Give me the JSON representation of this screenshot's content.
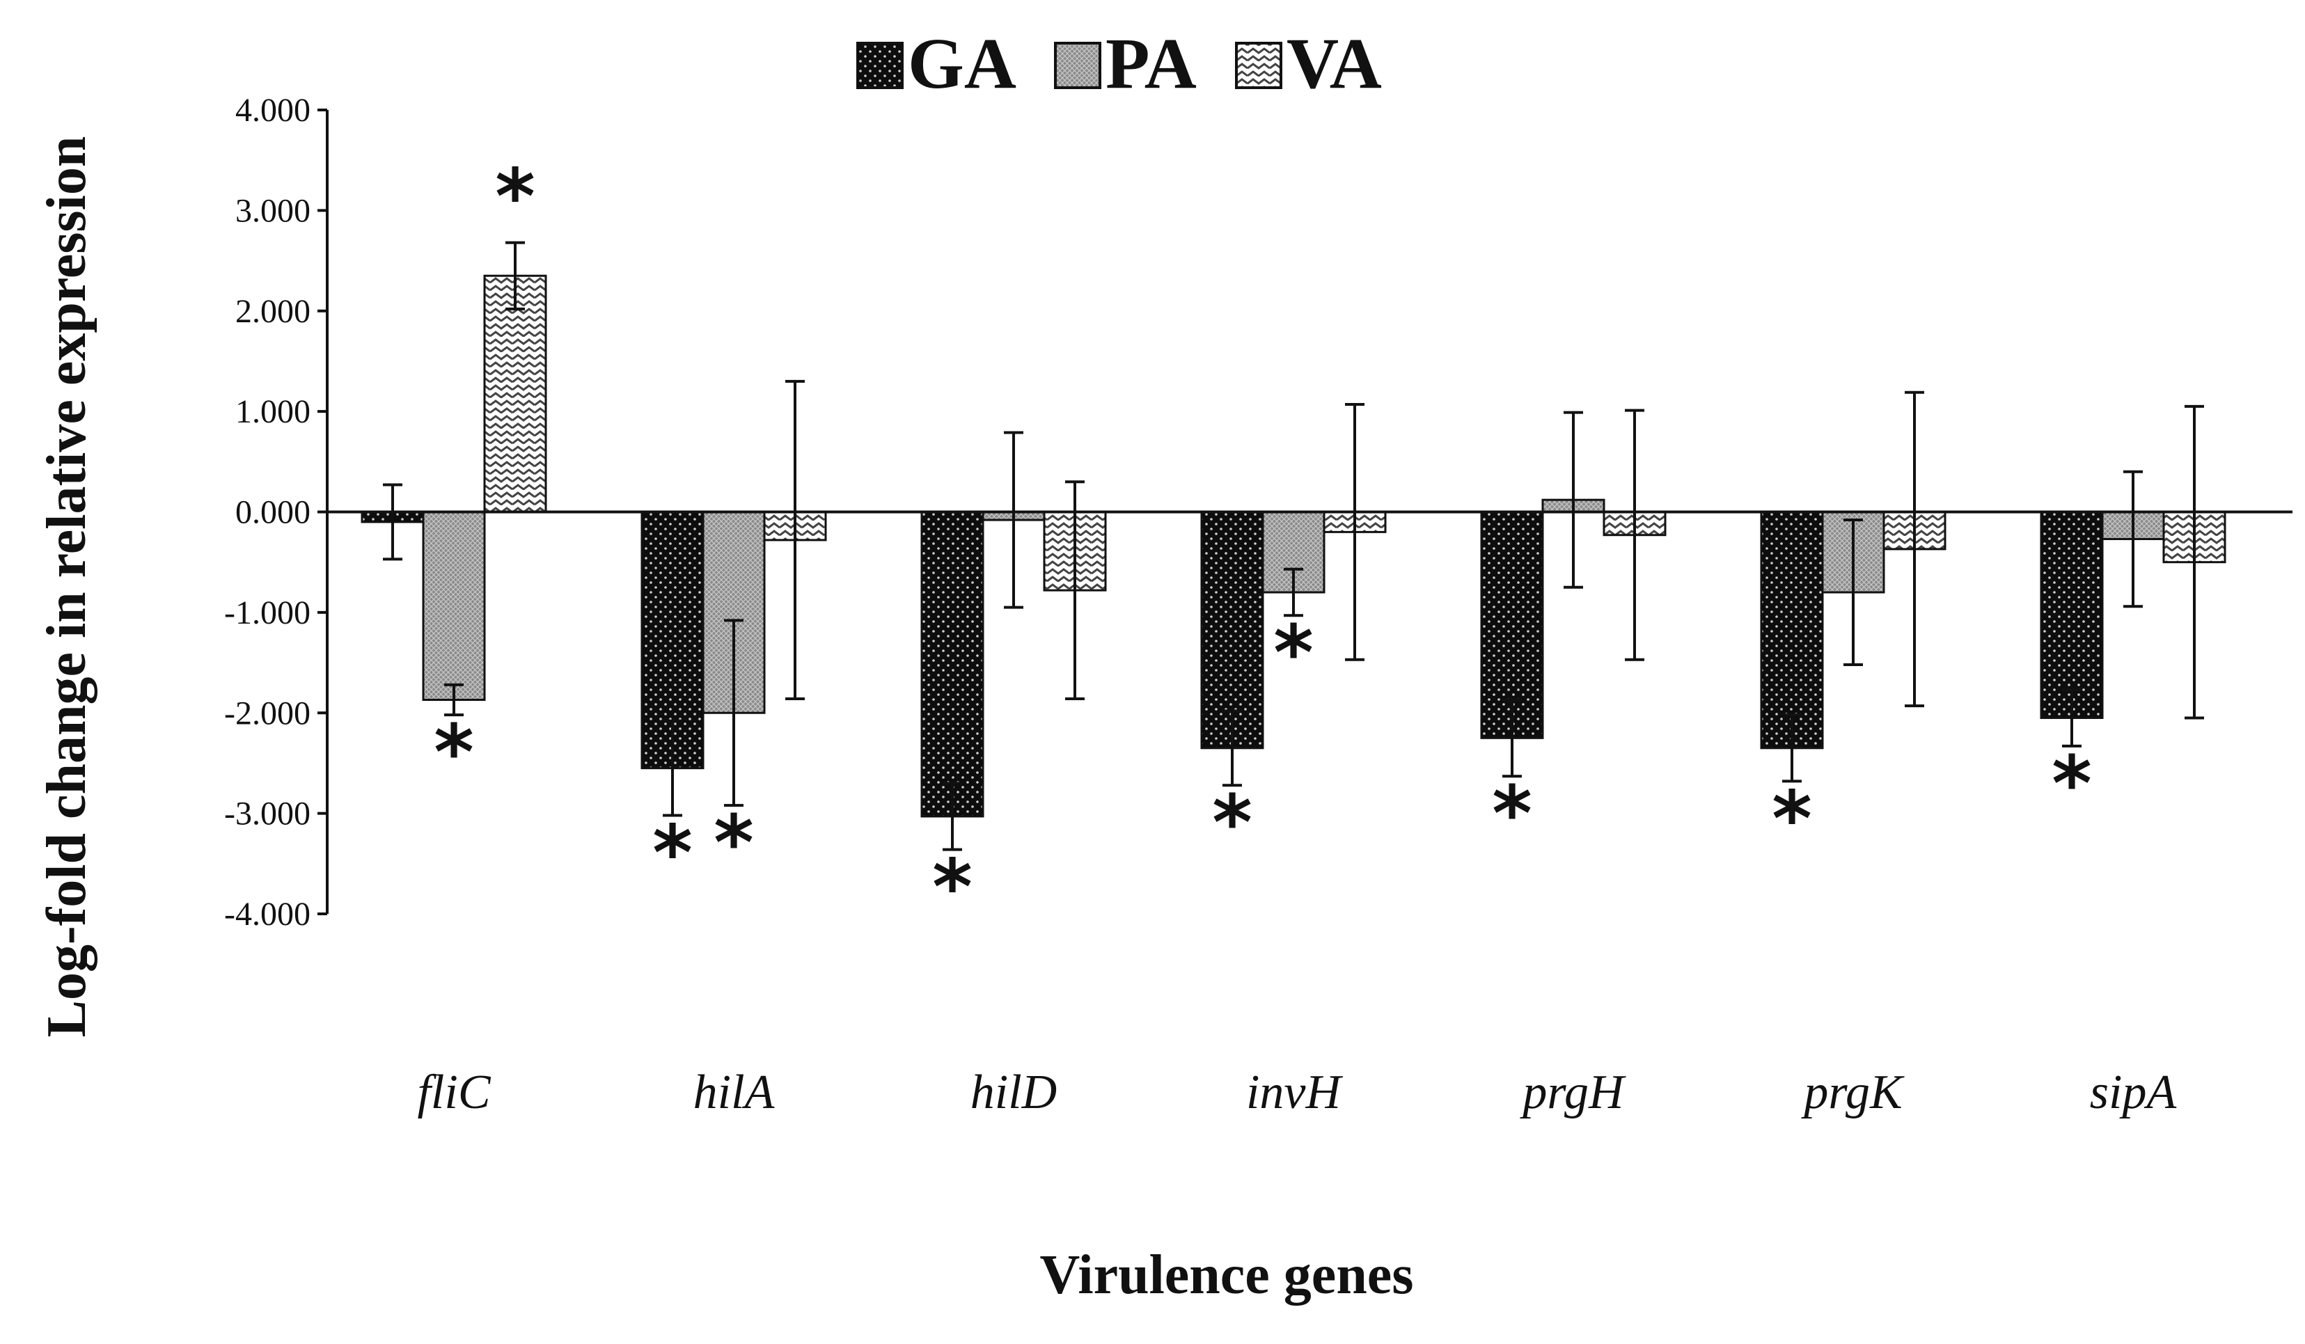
{
  "chart_data": {
    "type": "bar",
    "title": "",
    "xlabel": "Virulence genes",
    "ylabel": "Log-fold change in relative expression",
    "ylim": [
      -4,
      4
    ],
    "yticks": [
      "4.000",
      "3.000",
      "2.000",
      "1.000",
      "0.000",
      "-1.000",
      "-2.000",
      "-3.000",
      "-4.000"
    ],
    "categories": [
      "fliC",
      "hilA",
      "hilD",
      "invH",
      "prgH",
      "prgK",
      "sipA"
    ],
    "legend_position": "top-center",
    "series": [
      {
        "name": "GA",
        "pattern": "dots-on-black",
        "values": [
          -0.1,
          -2.55,
          -3.03,
          -2.35,
          -2.25,
          -2.35,
          -2.05
        ],
        "errors": [
          0.37,
          0.47,
          0.33,
          0.37,
          0.38,
          0.33,
          0.28
        ],
        "significant": [
          false,
          true,
          true,
          true,
          true,
          true,
          true
        ]
      },
      {
        "name": "PA",
        "pattern": "fine-crosshatch",
        "values": [
          -1.87,
          -2.0,
          -0.08,
          -0.8,
          0.12,
          -0.8,
          -0.27
        ],
        "errors": [
          0.15,
          0.92,
          0.87,
          0.23,
          0.87,
          0.72,
          0.67
        ],
        "significant": [
          true,
          true,
          false,
          true,
          false,
          false,
          false
        ]
      },
      {
        "name": "VA",
        "pattern": "zigzag",
        "values": [
          2.35,
          -0.28,
          -0.78,
          -0.2,
          -0.23,
          -0.37,
          -0.5
        ],
        "errors": [
          0.33,
          1.58,
          1.08,
          1.27,
          1.24,
          1.56,
          1.55
        ],
        "significant": [
          true,
          false,
          false,
          false,
          false,
          false,
          false
        ]
      }
    ],
    "significance_marker": "*",
    "colors": {
      "axis": "#111111",
      "ga_bg": "#0d0d0d",
      "ga_dot": "#cfcfcf",
      "pa_bg": "#8a8a8a",
      "pa_line": "#c8c8c8",
      "va_bg": "#ffffff",
      "va_line": "#444444"
    }
  }
}
